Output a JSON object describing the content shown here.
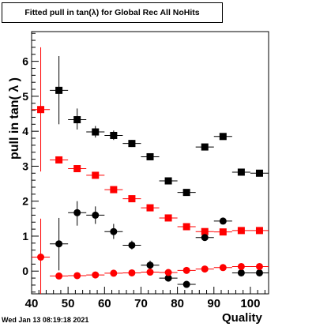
{
  "title": "Fitted pull in tan(λ) for Global Rec All NoHits",
  "ylabel": "pull in tan( λ )",
  "xlabel": "Quality",
  "timestamp": "Wed Jan 13 08:19:18 2021",
  "chart_data": {
    "type": "scatter",
    "xlim": [
      40,
      105
    ],
    "ylim": [
      -0.65,
      6.85
    ],
    "xticks": [
      40,
      50,
      60,
      70,
      80,
      90,
      100
    ],
    "yticks": [
      0,
      1,
      2,
      3,
      4,
      5,
      6
    ],
    "grid": false,
    "series": [
      {
        "marker": "square",
        "color": "#000000",
        "points": [
          {
            "x": 47.5,
            "y": 5.17,
            "ylo": 4.2,
            "yhi": 6.15
          },
          {
            "x": 52.5,
            "y": 4.33,
            "ylo": 4.05,
            "yhi": 4.65
          },
          {
            "x": 57.5,
            "y": 3.98,
            "ylo": 3.82,
            "yhi": 4.15
          },
          {
            "x": 62.5,
            "y": 3.88,
            "ylo": 3.75,
            "yhi": 4.02
          },
          {
            "x": 67.5,
            "y": 3.65,
            "ylo": 3.55,
            "yhi": 3.75
          },
          {
            "x": 72.5,
            "y": 3.27,
            "ylo": 3.18,
            "yhi": 3.36
          },
          {
            "x": 77.5,
            "y": 2.58,
            "ylo": 2.5,
            "yhi": 2.66
          },
          {
            "x": 82.5,
            "y": 2.25,
            "ylo": 2.18,
            "yhi": 2.32
          },
          {
            "x": 87.5,
            "y": 3.55,
            "ylo": 3.5,
            "yhi": 3.6
          },
          {
            "x": 92.5,
            "y": 3.85,
            "ylo": 3.8,
            "yhi": 3.9
          },
          {
            "x": 97.5,
            "y": 2.83,
            "ylo": 2.79,
            "yhi": 2.87
          },
          {
            "x": 102.5,
            "y": 2.8,
            "ylo": 2.76,
            "yhi": 2.84
          }
        ]
      },
      {
        "marker": "square",
        "color": "#ff0000",
        "points": [
          {
            "x": 42.5,
            "y": 4.62,
            "ylo": 2.85,
            "yhi": 6.4
          },
          {
            "x": 47.5,
            "y": 3.18,
            "ylo": 3.12,
            "yhi": 3.24
          },
          {
            "x": 52.5,
            "y": 2.93,
            "ylo": 2.88,
            "yhi": 2.98
          },
          {
            "x": 57.5,
            "y": 2.74,
            "ylo": 2.7,
            "yhi": 2.78
          },
          {
            "x": 62.5,
            "y": 2.33,
            "ylo": 2.29,
            "yhi": 2.37
          },
          {
            "x": 67.5,
            "y": 2.07,
            "ylo": 2.03,
            "yhi": 2.11
          },
          {
            "x": 72.5,
            "y": 1.81,
            "ylo": 1.77,
            "yhi": 1.85
          },
          {
            "x": 77.5,
            "y": 1.52,
            "ylo": 1.48,
            "yhi": 1.56
          },
          {
            "x": 82.5,
            "y": 1.27,
            "ylo": 1.23,
            "yhi": 1.31
          },
          {
            "x": 87.5,
            "y": 1.13,
            "ylo": 1.09,
            "yhi": 1.17
          },
          {
            "x": 92.5,
            "y": 1.12,
            "ylo": 1.08,
            "yhi": 1.16
          },
          {
            "x": 97.5,
            "y": 1.16,
            "ylo": 1.12,
            "yhi": 1.2
          },
          {
            "x": 102.5,
            "y": 1.16,
            "ylo": 1.12,
            "yhi": 1.2
          }
        ]
      },
      {
        "marker": "circle",
        "color": "#000000",
        "points": [
          {
            "x": 47.5,
            "y": 0.78,
            "ylo": 0.02,
            "yhi": 1.52
          },
          {
            "x": 52.5,
            "y": 1.67,
            "ylo": 1.3,
            "yhi": 2.0
          },
          {
            "x": 57.5,
            "y": 1.6,
            "ylo": 1.35,
            "yhi": 1.85
          },
          {
            "x": 62.5,
            "y": 1.13,
            "ylo": 0.92,
            "yhi": 1.35
          },
          {
            "x": 67.5,
            "y": 0.74,
            "ylo": 0.62,
            "yhi": 0.87
          },
          {
            "x": 72.5,
            "y": 0.17,
            "ylo": 0.05,
            "yhi": 0.3
          },
          {
            "x": 77.5,
            "y": -0.2,
            "ylo": -0.28,
            "yhi": -0.12
          },
          {
            "x": 82.5,
            "y": -0.38,
            "ylo": -0.45,
            "yhi": -0.31
          },
          {
            "x": 87.5,
            "y": 0.96,
            "ylo": 0.9,
            "yhi": 1.02
          },
          {
            "x": 92.5,
            "y": 1.43,
            "ylo": 1.38,
            "yhi": 1.48
          },
          {
            "x": 97.5,
            "y": -0.05,
            "ylo": -0.09,
            "yhi": -0.01
          },
          {
            "x": 102.5,
            "y": -0.05,
            "ylo": -0.09,
            "yhi": -0.01
          }
        ]
      },
      {
        "marker": "circle",
        "color": "#ff0000",
        "points": [
          {
            "x": 42.5,
            "y": 0.4,
            "ylo": -0.7,
            "yhi": 1.5
          },
          {
            "x": 47.5,
            "y": -0.14,
            "ylo": -0.2,
            "yhi": -0.08
          },
          {
            "x": 52.5,
            "y": -0.13,
            "ylo": -0.18,
            "yhi": -0.08
          },
          {
            "x": 57.5,
            "y": -0.11,
            "ylo": -0.15,
            "yhi": -0.07
          },
          {
            "x": 62.5,
            "y": -0.06,
            "ylo": -0.1,
            "yhi": -0.02
          },
          {
            "x": 67.5,
            "y": -0.05,
            "ylo": -0.09,
            "yhi": -0.01
          },
          {
            "x": 72.5,
            "y": -0.03,
            "ylo": -0.07,
            "yhi": 0.01
          },
          {
            "x": 77.5,
            "y": -0.04,
            "ylo": -0.08,
            "yhi": 0.0
          },
          {
            "x": 82.5,
            "y": 0.02,
            "ylo": -0.02,
            "yhi": 0.06
          },
          {
            "x": 87.5,
            "y": 0.06,
            "ylo": 0.02,
            "yhi": 0.1
          },
          {
            "x": 92.5,
            "y": 0.1,
            "ylo": 0.06,
            "yhi": 0.14
          },
          {
            "x": 97.5,
            "y": 0.13,
            "ylo": 0.09,
            "yhi": 0.17
          },
          {
            "x": 102.5,
            "y": 0.13,
            "ylo": 0.09,
            "yhi": 0.17
          }
        ]
      }
    ]
  }
}
